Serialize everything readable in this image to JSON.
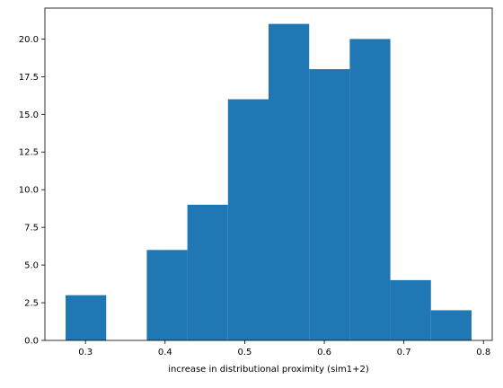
{
  "chart_data": {
    "type": "histogram",
    "title": "",
    "xlabel": "increase in distributional proximity (sim1+2)",
    "ylabel": "",
    "bin_edges": [
      0.275,
      0.326,
      0.377,
      0.428,
      0.479,
      0.53,
      0.581,
      0.632,
      0.683,
      0.734,
      0.785
    ],
    "counts": [
      3,
      0,
      6,
      9,
      16,
      21,
      18,
      20,
      4,
      2
    ],
    "xlim": [
      0.249,
      0.811
    ],
    "ylim": [
      0,
      22.05
    ],
    "xticks": [
      0.3,
      0.4,
      0.5,
      0.6,
      0.7,
      0.8
    ],
    "xtick_labels": [
      "0.3",
      "0.4",
      "0.5",
      "0.6",
      "0.7",
      "0.8"
    ],
    "yticks": [
      0,
      2.5,
      5,
      7.5,
      10,
      12.5,
      15,
      17.5,
      20
    ],
    "ytick_labels": [
      "0.0",
      "2.5",
      "5.0",
      "7.5",
      "10.0",
      "12.5",
      "15.0",
      "17.5",
      "20.0"
    ],
    "bar_color": "#1f77b4",
    "grid": false,
    "legend": "none"
  }
}
